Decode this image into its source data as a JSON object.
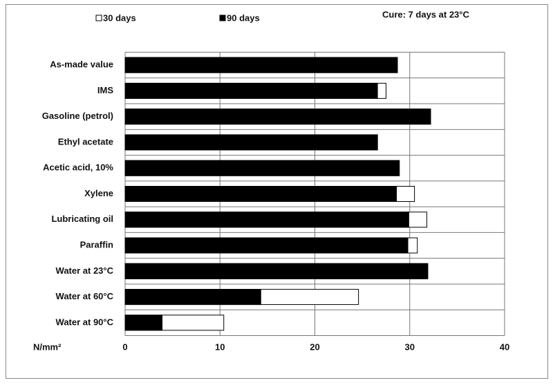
{
  "chart_data": {
    "type": "bar",
    "orientation": "horizontal",
    "overlap": true,
    "annotation": "Cure: 7 days at 23°C",
    "x_label": "N/mm²",
    "categories": [
      "As-made value",
      "IMS",
      "Gasoline (petrol)",
      "Ethyl acetate",
      "Acetic acid, 10%",
      "Xylene",
      "Lubricating oil",
      "Paraffin",
      "Water at 23°C",
      "Water at 60°C",
      "Water at 90°C"
    ],
    "series": [
      {
        "name": "30 days",
        "color": "#ffffff",
        "values": [
          28.7,
          27.5,
          32.2,
          26.6,
          28.9,
          30.5,
          31.8,
          30.8,
          31.9,
          24.6,
          10.4
        ]
      },
      {
        "name": "90 days",
        "color": "#000000",
        "values": [
          28.7,
          26.6,
          32.2,
          26.6,
          28.9,
          28.6,
          29.9,
          29.8,
          31.9,
          14.3,
          3.9
        ]
      }
    ],
    "xlim": [
      0,
      40
    ],
    "xticks": [
      0,
      10,
      20,
      30,
      40
    ],
    "grid": true
  }
}
